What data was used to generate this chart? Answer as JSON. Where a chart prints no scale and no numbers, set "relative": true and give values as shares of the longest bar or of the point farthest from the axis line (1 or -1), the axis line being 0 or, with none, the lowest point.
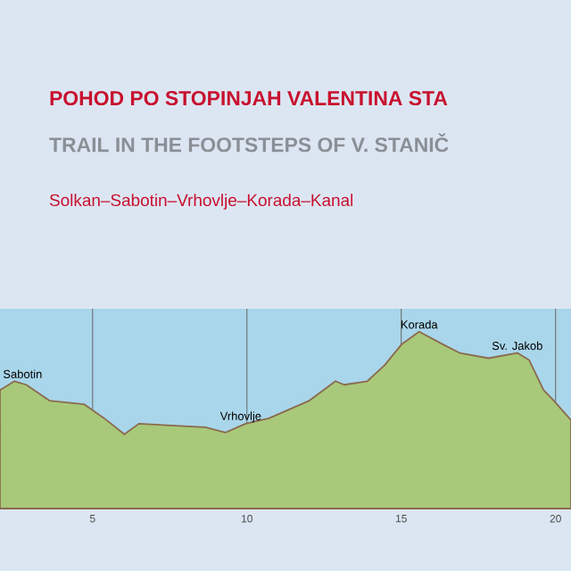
{
  "chart_data": {
    "type": "area",
    "title": "POHOD PO STOPINJAH VALENTINA STA",
    "subtitle": "TRAIL IN THE FOOTSTEPS OF V. STANIČ",
    "annotations": [
      "Solkan–Sabotin–Vrhovlje–Korada–Kanal",
      {
        "text": "Sabotin",
        "x": 2.47,
        "y": 0.72
      },
      {
        "text": "Vrhovlje",
        "x": 9.8,
        "y": 0.47
      },
      {
        "text": "Korada",
        "x": 15.58,
        "y": 1
      },
      {
        "text": "Sv. Jakob",
        "x": 18.76,
        "y": 0.88
      }
    ],
    "x": [
      2.0,
      2.47,
      2.85,
      3.6,
      4.72,
      5.38,
      6.03,
      6.5,
      7.53,
      8.65,
      9.31,
      9.96,
      10.71,
      12.02,
      12.87,
      13.15,
      13.9,
      14.46,
      15.02,
      15.58,
      16.33,
      16.89,
      17.83,
      18.76,
      19.14,
      19.61,
      19.89,
      20.5
    ],
    "series": [
      {
        "color": "#a8c97a",
        "values": [
          0.67,
          0.72,
          0.7,
          0.61,
          0.59,
          0.51,
          0.42,
          0.48,
          0.47,
          0.46,
          0.43,
          0.48,
          0.51,
          0.61,
          0.72,
          0.7,
          0.72,
          0.81,
          0.93,
          1,
          0.93,
          0.88,
          0.85,
          0.88,
          0.84,
          0.67,
          0.62,
          0.5
        ]
      }
    ],
    "relative": true,
    "xlim": [
      2,
      20.5
    ],
    "xticks": [
      5,
      10,
      15,
      20
    ],
    "grid": "x"
  }
}
